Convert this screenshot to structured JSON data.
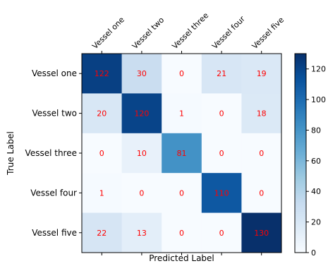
{
  "chart_data": {
    "type": "heatmap",
    "title": "",
    "xlabel": "Predicted Label",
    "ylabel": "True Label",
    "x_categories": [
      "Vessel one",
      "Vessel two",
      "Vessel three",
      "Vessel four",
      "Vessel five"
    ],
    "y_categories": [
      "Vessel one",
      "Vessel two",
      "Vessel three",
      "Vessel four",
      "Vessel five"
    ],
    "matrix": [
      [
        122,
        30,
        0,
        21,
        19
      ],
      [
        20,
        120,
        1,
        0,
        18
      ],
      [
        0,
        10,
        81,
        0,
        0
      ],
      [
        1,
        0,
        0,
        110,
        0
      ],
      [
        22,
        13,
        0,
        0,
        130
      ]
    ],
    "colormap": "Blues",
    "value_range": [
      0,
      130
    ],
    "colorbar_ticks": [
      0,
      20,
      40,
      60,
      80,
      100,
      120
    ],
    "cell_label_color": "#ff0000",
    "x_tick_position": "top",
    "x_tick_rotation_deg": 45,
    "grid": false
  }
}
